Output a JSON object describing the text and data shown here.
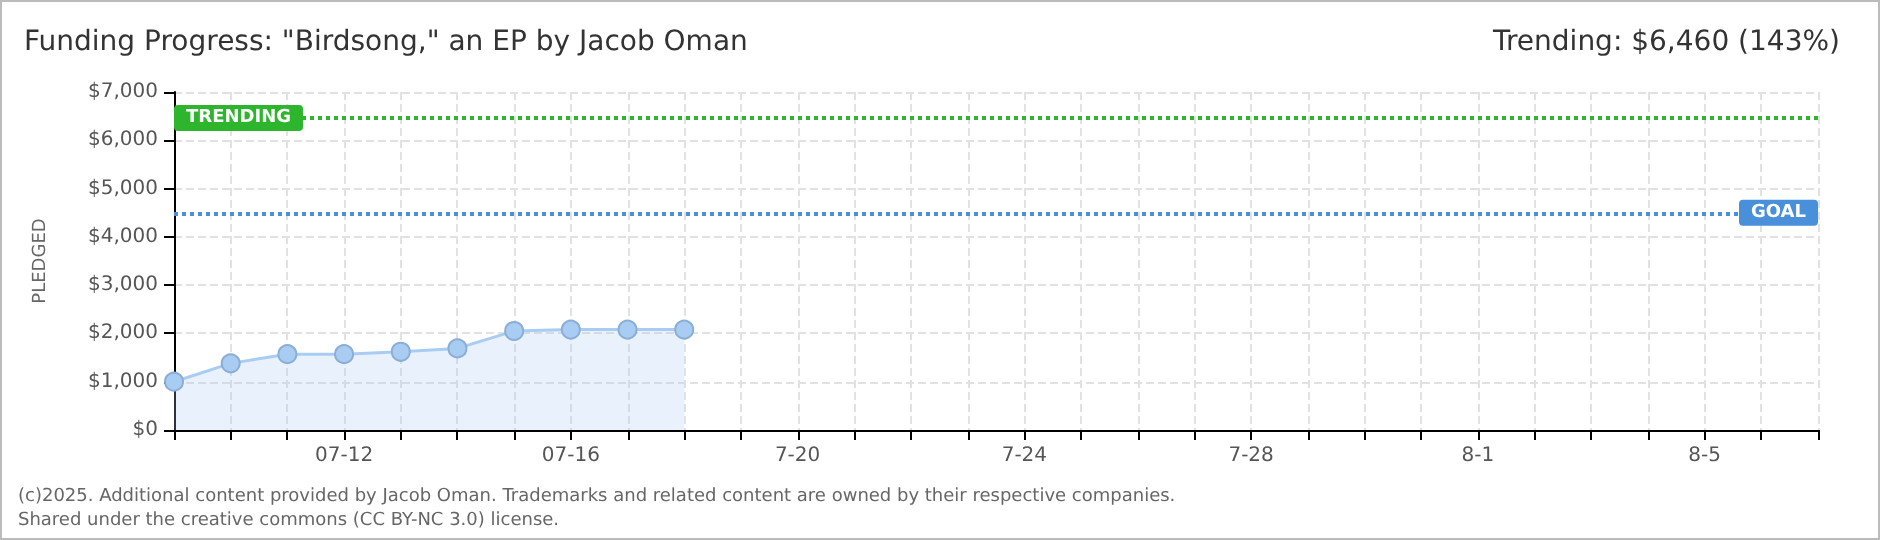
{
  "chart_data": {
    "type": "area",
    "title": "Funding Progress: \"Birdsong,\" an EP by Jacob Oman",
    "subtitle": "Trending: $6,460 (143%)",
    "ylabel": "PLEDGED",
    "categories": [
      null,
      null,
      null,
      "07-12",
      null,
      null,
      null,
      "07-16",
      null,
      null,
      null,
      "7-20",
      null,
      null,
      null,
      "7-24",
      null,
      null,
      null,
      "7-28",
      null,
      null,
      null,
      "8-1",
      null,
      null,
      null,
      "8-5",
      null,
      null
    ],
    "series": [
      {
        "color": "#a9cdf2",
        "values": [
          1000,
          1380,
          1570,
          1570,
          1620,
          1690,
          2050,
          2080,
          2080,
          2080,
          null,
          null,
          null,
          null,
          null,
          null,
          null,
          null,
          null,
          null,
          null,
          null,
          null,
          null,
          null,
          null,
          null,
          null,
          null,
          null
        ]
      }
    ],
    "ylim": [
      0,
      7000
    ],
    "yticks": [
      {
        "value": 0,
        "label": "$0"
      },
      {
        "value": 1000,
        "label": "$1,000"
      },
      {
        "value": 2000,
        "label": "$2,000"
      },
      {
        "value": 3000,
        "label": "$3,000"
      },
      {
        "value": 4000,
        "label": "$4,000"
      },
      {
        "value": 5000,
        "label": "$5,000"
      },
      {
        "value": 6000,
        "label": "$6,000"
      },
      {
        "value": 7000,
        "label": "$7,000"
      }
    ],
    "ref_lines": [
      {
        "axis": "y",
        "value": 6460,
        "label": "TRENDING",
        "color": "#2db52d",
        "line_style": "dotted"
      },
      {
        "axis": "y",
        "value": 4500,
        "label": "GOAL",
        "color": "#4a8fd9",
        "line_style": "dotted"
      }
    ],
    "grid": true,
    "marker": "circle",
    "line_style": "solid",
    "annotations": [
      "(c)2025. Additional content provided by Jacob Oman. Trademarks and related content are owned by their respective companies.",
      "Shared under the creative commons (CC BY-NC 3.0) license."
    ]
  }
}
